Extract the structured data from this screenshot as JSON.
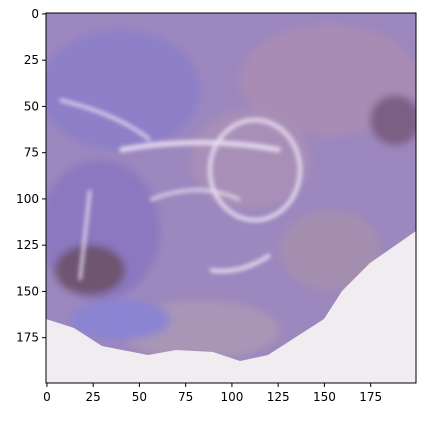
{
  "chart_data": {
    "type": "image",
    "xlim": [
      -0.5,
      199.5
    ],
    "ylim": [
      199.5,
      -0.5
    ],
    "xticks": [
      0,
      25,
      50,
      75,
      100,
      125,
      150,
      175
    ],
    "yticks": [
      0,
      25,
      50,
      75,
      100,
      125,
      150,
      175
    ]
  }
}
